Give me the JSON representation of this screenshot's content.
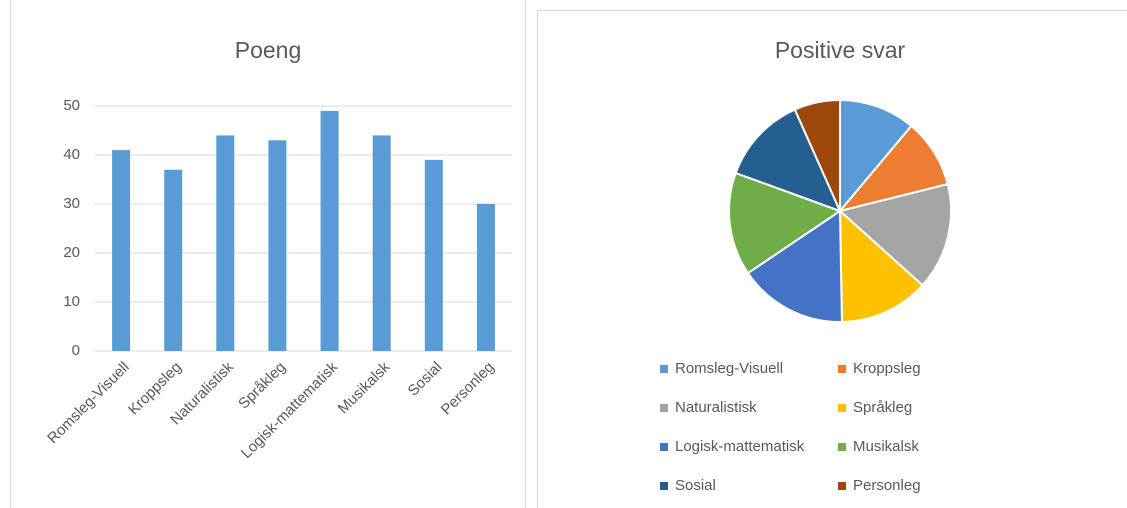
{
  "chart_data": [
    {
      "type": "bar",
      "title": "Poeng",
      "categories": [
        "Romsleg-Visuell",
        "Kroppsleg",
        "Naturalistisk",
        "Språkleg",
        "Logisk-mattematisk",
        "Musikalsk",
        "Sosial",
        "Personleg"
      ],
      "values": [
        41,
        37,
        44,
        43,
        49,
        44,
        39,
        30
      ],
      "color": "#5b9bd5",
      "ylim": [
        0,
        50
      ],
      "yticks": [
        0,
        10,
        20,
        30,
        40,
        50
      ],
      "grid": true
    },
    {
      "type": "pie",
      "title": "Positive svar",
      "categories": [
        "Romsleg-Visuell",
        "Kroppsleg",
        "Naturalistisk",
        "Språkleg",
        "Logisk-mattematisk",
        "Musikalsk",
        "Sosial",
        "Personleg"
      ],
      "values": [
        40,
        36,
        56,
        47,
        57,
        54,
        46,
        24
      ],
      "colors": [
        "#5b9bd5",
        "#ed7d31",
        "#a5a5a5",
        "#ffc000",
        "#4472c4",
        "#70ad47",
        "#255e91",
        "#9e480e"
      ],
      "legend": "bottom"
    }
  ]
}
